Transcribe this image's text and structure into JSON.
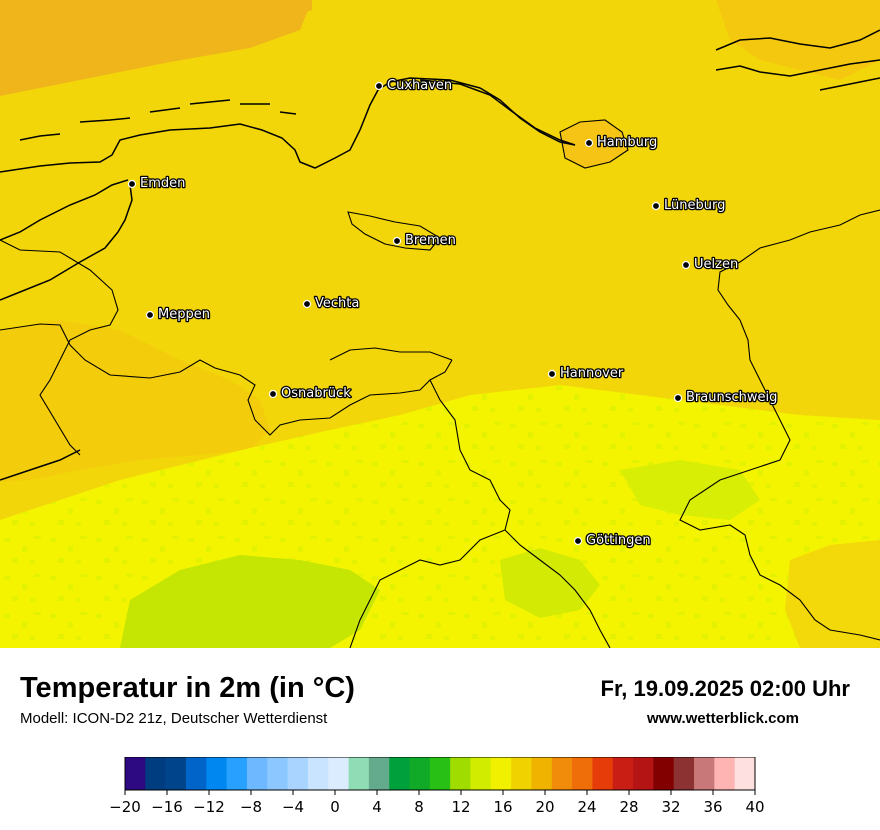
{
  "map": {
    "region": "Nordwestdeutschland",
    "colors": {
      "sea_orange": "#f0b51a",
      "land_warm": "#f5c414",
      "land_mid": "#f2d60a",
      "land_light": "#f4f400",
      "land_cool": "#d9ee05",
      "hills_green": "#c5e603",
      "coast_line": "#000000"
    },
    "cities": [
      {
        "name": "Cuxhaven"
      },
      {
        "name": "Hamburg"
      },
      {
        "name": "Emden"
      },
      {
        "name": "Lüneburg"
      },
      {
        "name": "Bremen"
      },
      {
        "name": "Uelzen"
      },
      {
        "name": "Vechta"
      },
      {
        "name": "Meppen"
      },
      {
        "name": "Hannover"
      },
      {
        "name": "Osnabrück"
      },
      {
        "name": "Braunschweig"
      },
      {
        "name": "Göttingen"
      }
    ]
  },
  "header": {
    "title": "Temperatur in 2m (in °C)",
    "subtitle": "Modell: ICON-D2 21z, Deutscher Wetterdienst",
    "datetime": "Fr, 19.09.2025 02:00 Uhr",
    "website": "www.wetterblick.com"
  },
  "colorbar": {
    "min": -20,
    "max": 40,
    "tick_labels": [
      "−20",
      "−16",
      "−12",
      "−8",
      "−4",
      "0",
      "4",
      "8",
      "12",
      "16",
      "20",
      "24",
      "28",
      "32",
      "36",
      "40"
    ],
    "colors": [
      "#2e0a82",
      "#003d80",
      "#00458c",
      "#0064c8",
      "#0088f0",
      "#28a0ff",
      "#6eb8ff",
      "#8cc8ff",
      "#a8d4ff",
      "#c8e4ff",
      "#dcecff",
      "#90dcb4",
      "#64aa8c",
      "#00a03c",
      "#10aa28",
      "#28c014",
      "#a0dc00",
      "#d2ec00",
      "#f0f000",
      "#f0d200",
      "#f0b400",
      "#f08c0a",
      "#f06e0a",
      "#e63c0a",
      "#c81e14",
      "#b41414",
      "#820000",
      "#8c3232",
      "#c87878",
      "#ffb4b4",
      "#ffe0e0"
    ]
  }
}
